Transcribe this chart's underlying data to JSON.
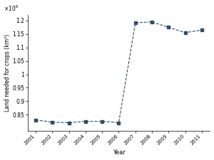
{
  "years": [
    2001,
    2002,
    2003,
    2004,
    2005,
    2006,
    2007,
    2008,
    2009,
    2010,
    2011
  ],
  "values": [
    830000.0,
    822000.0,
    820000.0,
    825000.0,
    825000.0,
    820000.0,
    1192000.0,
    1195000.0,
    1175000.0,
    1155000.0,
    1165000.0
  ],
  "color": "#2d4d6b",
  "marker": "s",
  "marker_size": 2.5,
  "linestyle": "--",
  "linewidth": 0.8,
  "xlabel": "Year",
  "ylabel": "Land needed for crops (km²)",
  "xlim": [
    2000.5,
    2011.5
  ],
  "ylim": [
    790000.0,
    1220000.0
  ],
  "yticks": [
    850000.0,
    900000.0,
    950000.0,
    1000000.0,
    1050000.0,
    1100000.0,
    1150000.0,
    1200000.0
  ],
  "ytick_labels": [
    "0.85",
    "0.9",
    "0.95",
    "1",
    "1.05",
    "1.1",
    "1.15",
    "1.2"
  ],
  "xticks": [
    2001,
    2002,
    2003,
    2004,
    2005,
    2006,
    2007,
    2008,
    2009,
    2010,
    2011
  ],
  "sci_notation": "×10⁶"
}
